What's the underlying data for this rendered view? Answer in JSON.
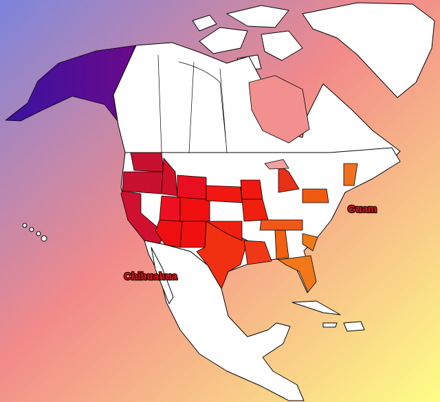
{
  "labels": [
    "Guam",
    "Chihuahua"
  ]
}
